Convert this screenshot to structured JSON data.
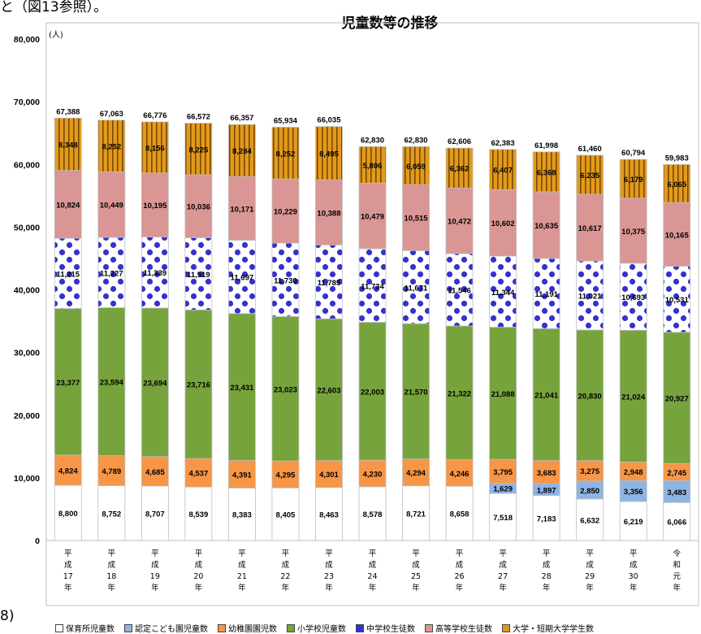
{
  "leading_text": "と（図13参照）。",
  "trailing_text": "8)",
  "chart_data": {
    "type": "bar",
    "stacked": true,
    "title": "児童数等の推移",
    "ylabel_unit": "(人)",
    "ylim": [
      0,
      80000
    ],
    "yticks": [
      "0",
      "10,000",
      "20,000",
      "30,000",
      "40,000",
      "50,000",
      "60,000",
      "70,000",
      "80,000"
    ],
    "ytick_values": [
      0,
      10000,
      20000,
      30000,
      40000,
      50000,
      60000,
      70000,
      80000
    ],
    "categories": [
      "平成17年",
      "平成18年",
      "平成19年",
      "平成20年",
      "平成21年",
      "平成22年",
      "平成23年",
      "平成24年",
      "平成25年",
      "平成26年",
      "平成27年",
      "平成28年",
      "平成29年",
      "平成30年",
      "令和元年"
    ],
    "category_labels": [
      [
        "平",
        "成",
        "17",
        "年"
      ],
      [
        "平",
        "成",
        "18",
        "年"
      ],
      [
        "平",
        "成",
        "19",
        "年"
      ],
      [
        "平",
        "成",
        "20",
        "年"
      ],
      [
        "平",
        "成",
        "21",
        "年"
      ],
      [
        "平",
        "成",
        "22",
        "年"
      ],
      [
        "平",
        "成",
        "23",
        "年"
      ],
      [
        "平",
        "成",
        "24",
        "年"
      ],
      [
        "平",
        "成",
        "25",
        "年"
      ],
      [
        "平",
        "成",
        "26",
        "年"
      ],
      [
        "平",
        "成",
        "27",
        "年"
      ],
      [
        "平",
        "成",
        "28",
        "年"
      ],
      [
        "平",
        "成",
        "29",
        "年"
      ],
      [
        "平",
        "成",
        "30",
        "年"
      ],
      [
        "令",
        "和",
        "元",
        "年"
      ]
    ],
    "totals": [
      67388,
      67063,
      66776,
      66572,
      66357,
      65934,
      66035,
      62830,
      62830,
      62606,
      62383,
      61998,
      61460,
      60794,
      59983
    ],
    "total_labels": [
      "67,388",
      "67,063",
      "66,776",
      "66,572",
      "66,357",
      "65,934",
      "66,035",
      "62,830",
      "62,830",
      "62,606",
      "62,383",
      "61,998",
      "61,460",
      "60,794",
      "59,983"
    ],
    "series": [
      {
        "name": "保育所児童数",
        "color": "#ffffff",
        "pattern": "none",
        "values": [
          8800,
          8752,
          8707,
          8539,
          8383,
          8405,
          8463,
          8578,
          8721,
          8658,
          7518,
          7183,
          6632,
          6219,
          6066
        ],
        "labels": [
          "8,800",
          "8,752",
          "8,707",
          "8,539",
          "8,383",
          "8,405",
          "8,463",
          "8,578",
          "8,721",
          "8,658",
          "7,518",
          "7,183",
          "6,632",
          "6,219",
          "6,066"
        ]
      },
      {
        "name": "認定こども園児童数",
        "color": "#8eb4e3",
        "pattern": "none",
        "values": [
          0,
          0,
          0,
          0,
          0,
          0,
          0,
          0,
          0,
          0,
          1629,
          1897,
          2850,
          3356,
          3483
        ],
        "labels": [
          "",
          "",
          "",
          "",
          "",
          "",
          "",
          "",
          "",
          "",
          "1,629",
          "1,897",
          "2,850",
          "3,356",
          "3,483"
        ]
      },
      {
        "name": "幼稚園園児数",
        "color": "#f79646",
        "pattern": "none",
        "values": [
          4824,
          4789,
          4685,
          4537,
          4391,
          4295,
          4301,
          4230,
          4294,
          4246,
          3795,
          3683,
          3275,
          2948,
          2745
        ],
        "labels": [
          "4,824",
          "4,789",
          "4,685",
          "4,537",
          "4,391",
          "4,295",
          "4,301",
          "4,230",
          "4,294",
          "4,246",
          "3,795",
          "3,683",
          "3,275",
          "2,948",
          "2,745"
        ]
      },
      {
        "name": "小学校児童数",
        "color": "#77a33d",
        "pattern": "none",
        "values": [
          23377,
          23594,
          23694,
          23716,
          23431,
          23023,
          22603,
          22003,
          21570,
          21322,
          21088,
          21041,
          20830,
          21024,
          20927
        ],
        "labels": [
          "23,377",
          "23,594",
          "23,694",
          "23,716",
          "23,431",
          "23,023",
          "22,603",
          "22,003",
          "21,570",
          "21,322",
          "21,088",
          "21,041",
          "20,830",
          "21,024",
          "20,927"
        ]
      },
      {
        "name": "中学校生徒数",
        "color": "#3333cc",
        "pattern": "dots",
        "values": [
          11215,
          11227,
          11339,
          11519,
          11697,
          11730,
          11785,
          11734,
          11671,
          11546,
          11344,
          11191,
          11021,
          10693,
          10531
        ],
        "labels": [
          "11,215",
          "11,227",
          "11,339",
          "11,519",
          "11,697",
          "11,730",
          "11,785",
          "11,734",
          "11,671",
          "11,546",
          "11,344",
          "11,191",
          "11,021",
          "10,693",
          "10,531"
        ]
      },
      {
        "name": "高等学校生徒数",
        "color": "#d99694",
        "pattern": "none",
        "values": [
          10824,
          10449,
          10195,
          10036,
          10171,
          10229,
          10388,
          10479,
          10515,
          10472,
          10602,
          10635,
          10617,
          10375,
          10165
        ],
        "labels": [
          "10,824",
          "10,449",
          "10,195",
          "10,036",
          "10,171",
          "10,229",
          "10,388",
          "10,479",
          "10,515",
          "10,472",
          "10,602",
          "10,635",
          "10,617",
          "10,375",
          "10,165"
        ]
      },
      {
        "name": "大学・短期大学学生数",
        "color": "#e39a1c",
        "pattern": "stripes",
        "values": [
          8348,
          8252,
          8156,
          8225,
          8284,
          8252,
          8495,
          5806,
          6059,
          6362,
          6407,
          6368,
          6235,
          6179,
          6065
        ],
        "labels": [
          "8,348",
          "8,252",
          "8,156",
          "8,225",
          "8,284",
          "8,252",
          "8,495",
          "5,806",
          "6,059",
          "6,362",
          "6,407",
          "6,368",
          "6,235",
          "6,179",
          "6,065"
        ]
      }
    ],
    "legend_labels": [
      "□保育所児童数",
      "■認定こども園児童数",
      "■幼稚園園児数",
      "■小学校児童数",
      "▨中学校生徒数",
      "■高等学校生徒数",
      "■大学・短期大学学生数"
    ],
    "grid": false,
    "legend_position": "bottom"
  }
}
